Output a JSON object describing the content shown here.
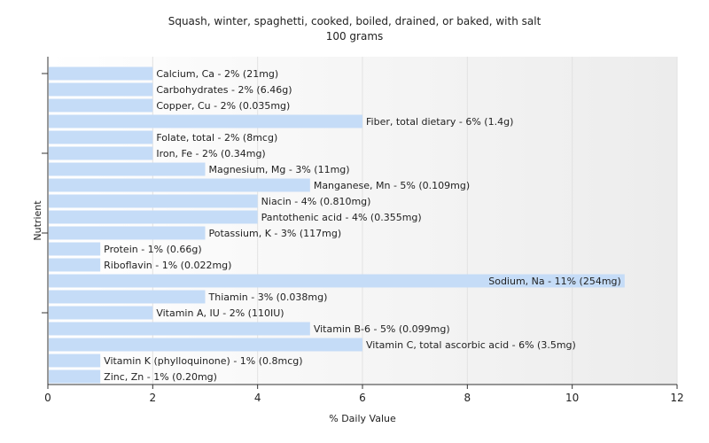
{
  "chart_data": {
    "type": "bar",
    "orientation": "horizontal",
    "title": "Squash, winter, spaghetti, cooked, boiled, drained, or baked, with salt",
    "subtitle": "100 grams",
    "xlabel": "% Daily Value",
    "ylabel": "Nutrient",
    "xlim": [
      0,
      12
    ],
    "xticks": [
      "0",
      "2",
      "4",
      "6",
      "8",
      "10",
      "12"
    ],
    "grid": true,
    "bar_color": "#c5dcf7",
    "bars": [
      {
        "label": "Calcium, Ca - 2% (21mg)",
        "value": 2
      },
      {
        "label": "Carbohydrates - 2% (6.46g)",
        "value": 2
      },
      {
        "label": "Copper, Cu - 2% (0.035mg)",
        "value": 2
      },
      {
        "label": "Fiber, total dietary - 6% (1.4g)",
        "value": 6
      },
      {
        "label": "Folate, total - 2% (8mcg)",
        "value": 2
      },
      {
        "label": "Iron, Fe - 2% (0.34mg)",
        "value": 2
      },
      {
        "label": "Magnesium, Mg - 3% (11mg)",
        "value": 3
      },
      {
        "label": "Manganese, Mn - 5% (0.109mg)",
        "value": 5
      },
      {
        "label": "Niacin - 4% (0.810mg)",
        "value": 4
      },
      {
        "label": "Pantothenic acid - 4% (0.355mg)",
        "value": 4
      },
      {
        "label": "Potassium, K - 3% (117mg)",
        "value": 3
      },
      {
        "label": "Protein - 1% (0.66g)",
        "value": 1
      },
      {
        "label": "Riboflavin - 1% (0.022mg)",
        "value": 1
      },
      {
        "label": "Sodium, Na - 11% (254mg)",
        "value": 11
      },
      {
        "label": "Thiamin - 3% (0.038mg)",
        "value": 3
      },
      {
        "label": "Vitamin A, IU - 2% (110IU)",
        "value": 2
      },
      {
        "label": "Vitamin B-6 - 5% (0.099mg)",
        "value": 5
      },
      {
        "label": "Vitamin C, total ascorbic acid - 6% (3.5mg)",
        "value": 6
      },
      {
        "label": "Vitamin K (phylloquinone) - 1% (0.8mcg)",
        "value": 1
      },
      {
        "label": "Zinc, Zn - 1% (0.20mg)",
        "value": 1
      }
    ]
  }
}
